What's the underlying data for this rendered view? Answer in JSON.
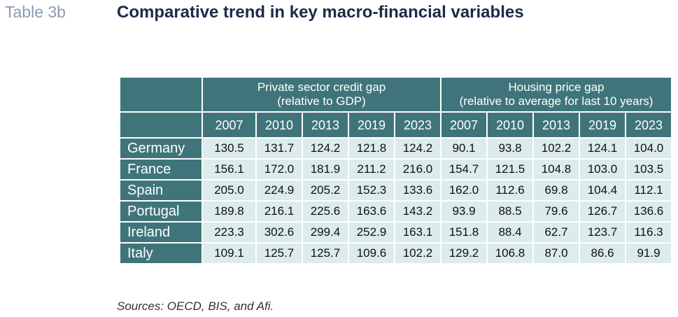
{
  "table_label": "Table 3b",
  "title": "Comparative trend in key macro-financial variables",
  "groups": [
    {
      "line1": "Private sector credit gap",
      "line2": "(relative to GDP)"
    },
    {
      "line1": "Housing price gap",
      "line2": "(relative to average for last 10 years)"
    }
  ],
  "years": [
    "2007",
    "2010",
    "2013",
    "2019",
    "2023"
  ],
  "rows": [
    {
      "country": "Germany",
      "values": [
        "130.5",
        "131.7",
        "124.2",
        "121.8",
        "124.2",
        "90.1",
        "93.8",
        "102.2",
        "124.1",
        "104.0"
      ]
    },
    {
      "country": "France",
      "values": [
        "156.1",
        "172.0",
        "181.9",
        "211.2",
        "216.0",
        "154.7",
        "121.5",
        "104.8",
        "103.0",
        "103.5"
      ]
    },
    {
      "country": "Spain",
      "values": [
        "205.0",
        "224.9",
        "205.2",
        "152.3",
        "133.6",
        "162.0",
        "112.6",
        "69.8",
        "104.4",
        "112.1"
      ]
    },
    {
      "country": "Portugal",
      "values": [
        "189.8",
        "216.1",
        "225.6",
        "163.6",
        "143.2",
        "93.9",
        "88.5",
        "79.6",
        "126.7",
        "136.6"
      ]
    },
    {
      "country": "Ireland",
      "values": [
        "223.3",
        "302.6",
        "299.4",
        "252.9",
        "163.1",
        "151.8",
        "88.4",
        "62.7",
        "123.7",
        "116.3"
      ]
    },
    {
      "country": "Italy",
      "values": [
        "109.1",
        "125.7",
        "125.7",
        "109.6",
        "102.2",
        "129.2",
        "106.8",
        "87.0",
        "86.6",
        "91.9"
      ]
    }
  ],
  "sources": "Sources: OECD, BIS, and Afi.",
  "colors": {
    "header_bg": "#3f757a",
    "cell_bg": "#dcebeb",
    "title": "#1d2a48",
    "label": "#8a9cad"
  }
}
